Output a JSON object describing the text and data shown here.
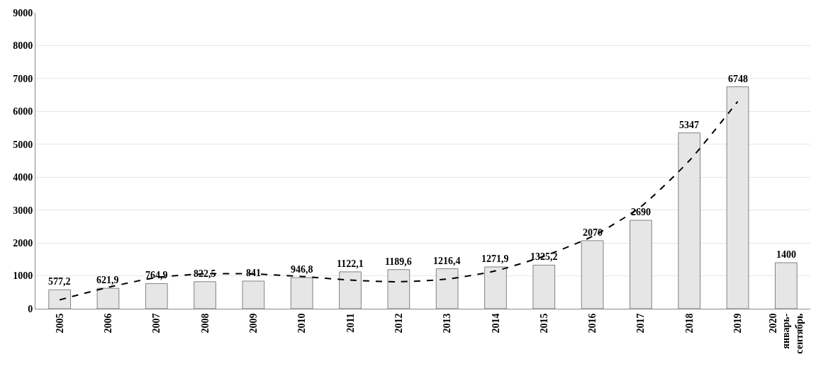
{
  "chart_data": {
    "type": "bar",
    "categories": [
      "2005",
      "2006",
      "2007",
      "2008",
      "2009",
      "2010",
      "2011",
      "2012",
      "2013",
      "2014",
      "2015",
      "2016",
      "2017",
      "2018",
      "2019",
      "2020\nянварь-\nсентябрь"
    ],
    "series": [
      {
        "color": "#e6e6e6",
        "values": [
          577.2,
          621.9,
          764.9,
          822.5,
          841,
          946.8,
          1122.1,
          1189.6,
          1216.4,
          1271.9,
          1325.2,
          2070,
          2690,
          5347,
          6748,
          1400
        ],
        "value_labels": [
          "577,2",
          "621,9",
          "764,9",
          "822,5",
          "841",
          "946,8",
          "1122,1",
          "1189,6",
          "1216,4",
          "1271,9",
          "1325,2",
          "2070",
          "2690",
          "5347",
          "6748",
          "1400"
        ]
      },
      {
        "type": "line",
        "color": "#000000",
        "line_style": "dashed",
        "marker": "none",
        "values": [
          270,
          650,
          950,
          1060,
          1060,
          980,
          870,
          820,
          900,
          1150,
          1600,
          2200,
          3100,
          4500,
          6300,
          null
        ]
      }
    ],
    "ylim": [
      0,
      9000
    ],
    "yticks": [
      0,
      1000,
      2000,
      3000,
      4000,
      5000,
      6000,
      7000,
      8000,
      9000
    ],
    "grid": "y",
    "legend": false
  }
}
